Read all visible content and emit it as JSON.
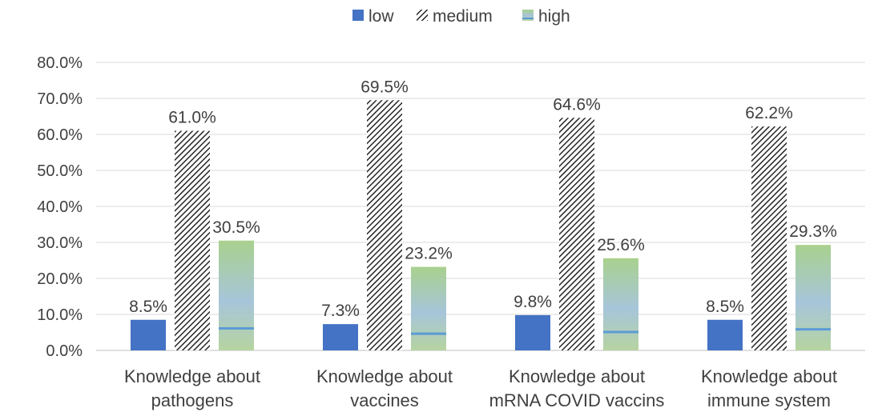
{
  "chart_data": {
    "type": "bar",
    "categories": [
      [
        "Knowledge about",
        "pathogens"
      ],
      [
        "Knowledge about",
        "vaccines"
      ],
      [
        "Knowledge about",
        "mRNA COVID vaccins"
      ],
      [
        "Knowledge about",
        "immune system"
      ]
    ],
    "series": [
      {
        "name": "low",
        "values": [
          8.5,
          7.3,
          9.8,
          8.5
        ],
        "labels": [
          "8.5%",
          "7.3%",
          "9.8%",
          "8.5%"
        ],
        "color": "#4472C4",
        "fill": "solid"
      },
      {
        "name": "medium",
        "values": [
          61.0,
          69.5,
          64.6,
          62.2
        ],
        "labels": [
          "61.0%",
          "69.5%",
          "64.6%",
          "62.2%"
        ],
        "color": "#262626",
        "fill": "diagonal-hatch"
      },
      {
        "name": "high",
        "values": [
          30.5,
          23.2,
          25.6,
          29.3
        ],
        "labels": [
          "30.5%",
          "23.2%",
          "25.6%",
          "29.3%"
        ],
        "color": "#A9D18E",
        "fill": "gradient-green-to-blue"
      }
    ],
    "y_ticks": [
      "0.0%",
      "10.0%",
      "20.0%",
      "30.0%",
      "40.0%",
      "50.0%",
      "60.0%",
      "70.0%",
      "80.0%"
    ],
    "ylim": [
      0,
      80
    ],
    "grid": true,
    "legend": "top-center",
    "title": "",
    "xlabel": "",
    "ylabel": ""
  }
}
